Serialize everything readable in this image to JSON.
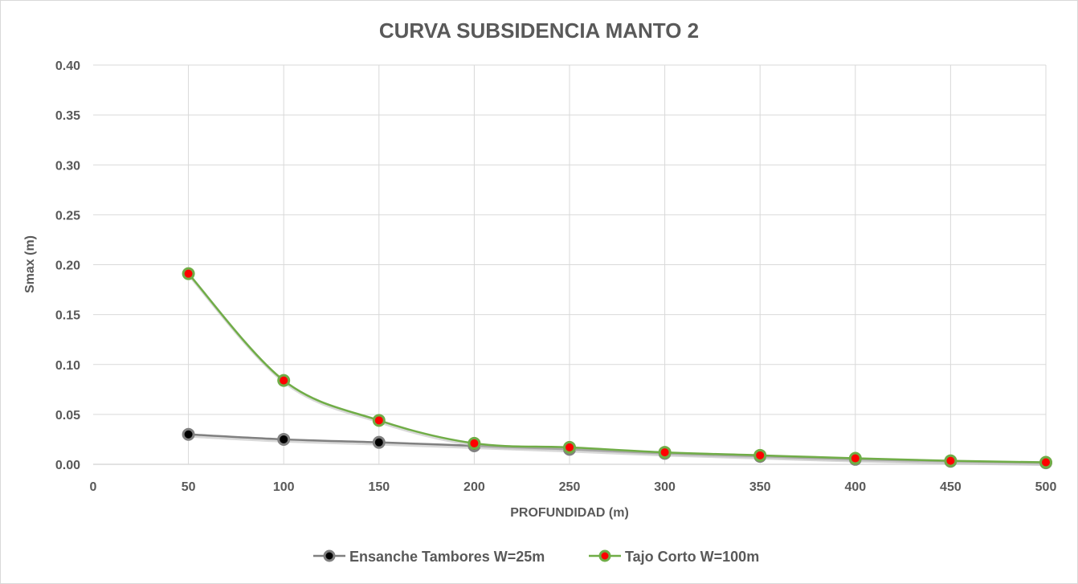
{
  "chart_data": {
    "type": "line",
    "title": "CURVA SUBSIDENCIA MANTO 2",
    "xlabel": "PROFUNDIDAD (m)",
    "ylabel": "Smax (m)",
    "xlim": [
      0,
      500
    ],
    "ylim": [
      0,
      0.4
    ],
    "xticks": [
      "0",
      "50",
      "100",
      "150",
      "200",
      "250",
      "300",
      "350",
      "400",
      "450",
      "500"
    ],
    "yticks": [
      "0.00",
      "0.05",
      "0.10",
      "0.15",
      "0.20",
      "0.25",
      "0.30",
      "0.35",
      "0.40"
    ],
    "grid": true,
    "smooth": true,
    "legend_position": "bottom",
    "x": [
      50,
      100,
      150,
      200,
      250,
      300,
      350,
      400,
      450,
      500
    ],
    "series": [
      {
        "name": "Ensanche Tambores W=25m",
        "line_color": "#808080",
        "marker_color": "#000000",
        "values": [
          0.03,
          0.025,
          0.022,
          0.0185,
          0.015,
          0.011,
          0.008,
          0.005,
          0.003,
          0.0015
        ]
      },
      {
        "name": "Tajo Corto W=100m",
        "line_color": "#70ad47",
        "marker_color": "#ff0000",
        "values": [
          0.191,
          0.084,
          0.044,
          0.021,
          0.017,
          0.012,
          0.009,
          0.006,
          0.0035,
          0.002
        ]
      }
    ]
  }
}
